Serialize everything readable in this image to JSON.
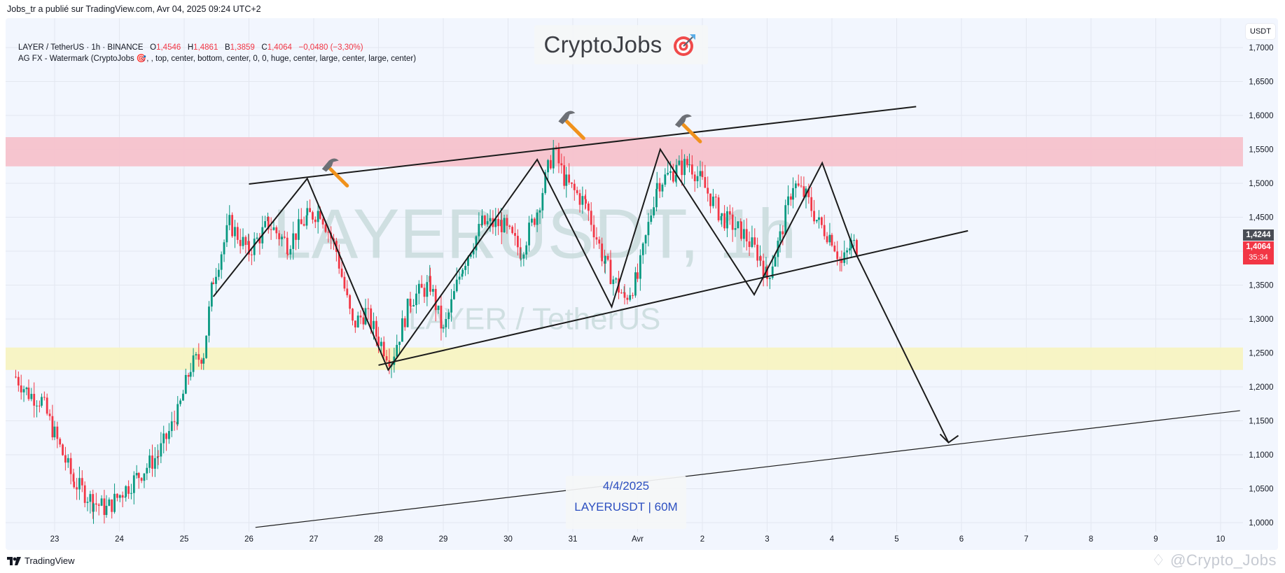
{
  "header": {
    "published": "Jobs_tr a publié sur TradingView.com, Avr 04, 2025 09:24 UTC+2"
  },
  "legend": {
    "symbol_line": "LAYER / TetherUS · 1h · BINANCE",
    "o_label": "O",
    "o": "1,4546",
    "h_label": "H",
    "h": "1,4861",
    "l_label": "B",
    "l": "1,3859",
    "c_label": "C",
    "c": "1,4064",
    "change": "−0,0480 (−3,30%)",
    "indicator_line": "AG FX - Watermark (CryptoJobs 🎯, , top, center, bottom, center, 0, 0, huge, center, large, center, large, center)"
  },
  "watermark": {
    "top_title": "CryptoJobs",
    "top_icon": "target-dart-icon",
    "center_big": "LAYERUSDT, 1h",
    "center_sub": "LAYER / TetherUS",
    "bottom_date": "4/4/2025",
    "bottom_label": "LAYERUSDT | 60M"
  },
  "price_axis": {
    "currency": "USDT",
    "labels": [
      "1,7000",
      "1,6500",
      "1,6000",
      "1,5500",
      "1,5000",
      "1,4500",
      "1,4000",
      "1,3500",
      "1,3000",
      "1,2500",
      "1,2000",
      "1,1500",
      "1,1000",
      "1,0500",
      "1,0000"
    ],
    "crosshair_price": "1,4244",
    "last_price": "1,4064",
    "countdown": "35:34"
  },
  "time_axis": {
    "labels": [
      "23",
      "24",
      "25",
      "26",
      "27",
      "28",
      "29",
      "30",
      "31",
      "Avr",
      "2",
      "3",
      "4",
      "5",
      "6",
      "7",
      "8",
      "9",
      "10"
    ]
  },
  "footer": {
    "logo_text": "TradingView",
    "author_handle": "@Crypto_Jobs"
  },
  "colors": {
    "up": "#089981",
    "down": "#f23645",
    "resistance_zone": "#f5c2cc",
    "support_zone": "#f7f3c2",
    "background": "#f2f6fe",
    "grid": "#e3e7f0",
    "lines": "#1b1b1b"
  },
  "chart_data": {
    "type": "candlestick",
    "title": "LAYER / TetherUS · 1h · BINANCE",
    "xlabel": "",
    "ylabel": "USDT",
    "ylim": [
      0.985,
      1.72
    ],
    "x_ticks": [
      "23",
      "24",
      "25",
      "26",
      "27",
      "28",
      "29",
      "30",
      "31",
      "Avr",
      "2",
      "3",
      "4",
      "5",
      "6",
      "7",
      "8",
      "9",
      "10"
    ],
    "y_ticks": [
      1.0,
      1.05,
      1.1,
      1.15,
      1.2,
      1.25,
      1.3,
      1.35,
      1.4,
      1.45,
      1.5,
      1.55,
      1.6,
      1.65,
      1.7
    ],
    "grid": true,
    "ohlc_last": {
      "open": 1.4546,
      "high": 1.4861,
      "low": 1.3859,
      "close": 1.4064,
      "change": -0.048,
      "change_pct": -3.3
    },
    "price_path": [
      {
        "day": 22.4,
        "price": 1.215
      },
      {
        "day": 22.6,
        "price": 1.19
      },
      {
        "day": 22.8,
        "price": 1.18
      },
      {
        "day": 23.0,
        "price": 1.13
      },
      {
        "day": 23.3,
        "price": 1.06
      },
      {
        "day": 23.6,
        "price": 1.03
      },
      {
        "day": 23.8,
        "price": 1.02
      },
      {
        "day": 24.1,
        "price": 1.05
      },
      {
        "day": 24.3,
        "price": 1.07
      },
      {
        "day": 24.6,
        "price": 1.1
      },
      {
        "day": 24.9,
        "price": 1.16
      },
      {
        "day": 25.1,
        "price": 1.23
      },
      {
        "day": 25.3,
        "price": 1.25
      },
      {
        "day": 25.45,
        "price": 1.36
      },
      {
        "day": 25.7,
        "price": 1.44
      },
      {
        "day": 26.0,
        "price": 1.4
      },
      {
        "day": 26.3,
        "price": 1.44
      },
      {
        "day": 26.6,
        "price": 1.41
      },
      {
        "day": 26.9,
        "price": 1.45
      },
      {
        "day": 27.1,
        "price": 1.46
      },
      {
        "day": 27.35,
        "price": 1.4
      },
      {
        "day": 27.6,
        "price": 1.29
      },
      {
        "day": 27.8,
        "price": 1.31
      },
      {
        "day": 28.0,
        "price": 1.27
      },
      {
        "day": 28.2,
        "price": 1.24
      },
      {
        "day": 28.5,
        "price": 1.33
      },
      {
        "day": 28.8,
        "price": 1.35
      },
      {
        "day": 29.0,
        "price": 1.28
      },
      {
        "day": 29.3,
        "price": 1.38
      },
      {
        "day": 29.6,
        "price": 1.44
      },
      {
        "day": 29.9,
        "price": 1.44
      },
      {
        "day": 30.2,
        "price": 1.4
      },
      {
        "day": 30.45,
        "price": 1.46
      },
      {
        "day": 30.7,
        "price": 1.55
      },
      {
        "day": 30.9,
        "price": 1.5
      },
      {
        "day": 31.2,
        "price": 1.47
      },
      {
        "day": 31.5,
        "price": 1.38
      },
      {
        "day": 31.8,
        "price": 1.33
      },
      {
        "day": 32.0,
        "price": 1.36
      },
      {
        "day": 32.3,
        "price": 1.5
      },
      {
        "day": 32.6,
        "price": 1.52
      },
      {
        "day": 32.8,
        "price": 1.53
      },
      {
        "day": 33.0,
        "price": 1.5
      },
      {
        "day": 33.3,
        "price": 1.45
      },
      {
        "day": 33.6,
        "price": 1.43
      },
      {
        "day": 33.9,
        "price": 1.39
      },
      {
        "day": 34.0,
        "price": 1.36
      },
      {
        "day": 34.2,
        "price": 1.42
      },
      {
        "day": 34.4,
        "price": 1.5
      },
      {
        "day": 34.6,
        "price": 1.48
      },
      {
        "day": 34.8,
        "price": 1.44
      },
      {
        "day": 35.0,
        "price": 1.42
      },
      {
        "day": 35.15,
        "price": 1.38
      },
      {
        "day": 35.3,
        "price": 1.41
      },
      {
        "day": 35.4,
        "price": 1.4064
      }
    ],
    "zones": [
      {
        "name": "resistance",
        "from": 1.525,
        "to": 1.568,
        "color": "#f5c2cc"
      },
      {
        "name": "support",
        "from": 1.225,
        "to": 1.258,
        "color": "#f7f3c2"
      }
    ],
    "drawings": [
      {
        "name": "upper-channel-line",
        "points": [
          [
            26.0,
            1.499
          ],
          [
            36.3,
            1.613
          ]
        ]
      },
      {
        "name": "lower-channel-line",
        "points": [
          [
            28.0,
            1.232
          ],
          [
            37.1,
            1.43
          ]
        ]
      },
      {
        "name": "long-support-line",
        "points": [
          [
            26.1,
            0.993
          ],
          [
            41.3,
            1.165
          ]
        ]
      },
      {
        "name": "zigzag-pattern",
        "points": [
          [
            25.45,
            1.333
          ],
          [
            26.9,
            1.507
          ],
          [
            28.15,
            1.225
          ],
          [
            30.45,
            1.535
          ],
          [
            31.6,
            1.318
          ],
          [
            32.35,
            1.55
          ],
          [
            33.8,
            1.336
          ],
          [
            34.85,
            1.53
          ],
          [
            35.35,
            1.4
          ],
          [
            36.8,
            1.118
          ]
        ]
      }
    ],
    "annotations": [
      {
        "type": "hammer-icon",
        "day": 27.3,
        "price": 1.515
      },
      {
        "type": "hammer-icon",
        "day": 30.95,
        "price": 1.585
      },
      {
        "type": "hammer-icon",
        "day": 32.75,
        "price": 1.58
      },
      {
        "type": "arrow-down",
        "day": 36.8,
        "price": 1.118
      }
    ]
  }
}
